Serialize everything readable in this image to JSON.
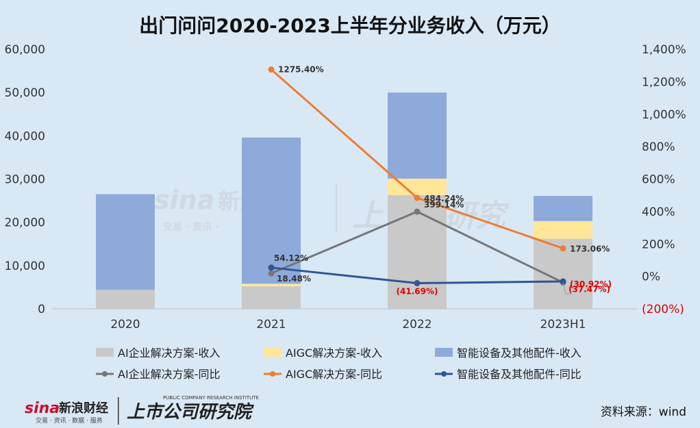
{
  "chart_data": {
    "type": "bar",
    "title": "出门问问2020-2023上半年分业务收入（万元）",
    "categories": [
      "2020",
      "2021",
      "2022",
      "2023H1"
    ],
    "bar_series": [
      {
        "name": "AI企业解决方案-收入",
        "color": "#c9c9c9",
        "values": [
          4400,
          5200,
          26300,
          16200
        ]
      },
      {
        "name": "AIGC解决方案-收入",
        "color": "#ffe699",
        "values": [
          0,
          600,
          3800,
          4100
        ]
      },
      {
        "name": "智能设备及其他配件-收入",
        "color": "#8eaadb",
        "values": [
          22100,
          33800,
          19900,
          5800
        ]
      }
    ],
    "line_series": [
      {
        "name": "AI企业解决方案-同比",
        "color": "#767676",
        "values": [
          null,
          18.48,
          399.14,
          -37.47
        ],
        "labels": [
          "",
          "18.48%",
          "399.14%",
          "(37.47%)"
        ]
      },
      {
        "name": "AIGC解决方案-同比",
        "color": "#ed7d31",
        "values": [
          null,
          1275.4,
          484.24,
          173.06
        ],
        "labels": [
          "",
          "1275.40%",
          "484.24%",
          "173.06%"
        ]
      },
      {
        "name": "智能设备及其他配件-同比",
        "color": "#2f5597",
        "values": [
          null,
          54.12,
          -41.69,
          -30.92
        ],
        "labels": [
          "",
          "54.12%",
          "(41.69%)",
          "(30.92%)"
        ]
      }
    ],
    "y_left": {
      "min": 0,
      "max": 60000,
      "ticks": [
        "0",
        "10,000",
        "20,000",
        "30,000",
        "40,000",
        "50,000",
        "60,000"
      ]
    },
    "y_right": {
      "min": -200,
      "max": 1400,
      "ticks": [
        "(200%)",
        "0%",
        "200%",
        "400%",
        "600%",
        "800%",
        "1,000%",
        "1,200%",
        "1,400%"
      ]
    },
    "grid": false,
    "legend_position": "bottom"
  },
  "source": "资料来源：wind",
  "logos": {
    "sina": "sina新浪财经",
    "sina_sub": "交易 · 资讯 · 数据 · 服务",
    "research": "上市公司研究院",
    "research_sub": "PUBLIC COMPANY RESEARCH INSTITUTE"
  }
}
